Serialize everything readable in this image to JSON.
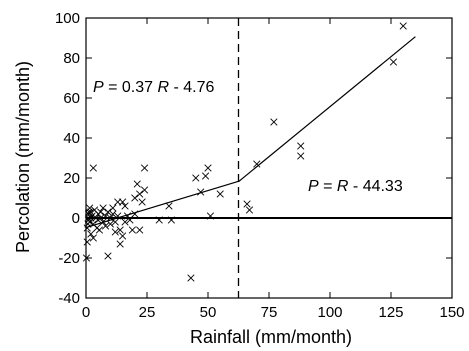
{
  "chart_data": {
    "type": "scatter",
    "xlabel": "Rainfall (mm/month)",
    "ylabel": "Percolation (mm/month)",
    "xlim": [
      0,
      150
    ],
    "ylim": [
      -40,
      100
    ],
    "xticks": [
      0,
      25,
      50,
      75,
      100,
      125,
      150
    ],
    "yticks": [
      -40,
      -20,
      0,
      20,
      40,
      60,
      80,
      100
    ],
    "xtick_labels": [
      "0",
      "25",
      "50",
      "75",
      "100",
      "125",
      "150"
    ],
    "ytick_labels": [
      "-40",
      "-20",
      "0",
      "20",
      "40",
      "60",
      "80",
      "100"
    ],
    "grid": false,
    "threshold_x": 62.5,
    "fit_segments": [
      {
        "x": [
          0,
          62.5
        ],
        "slope": 0.37,
        "intercept": -4.76,
        "equation": {
          "var1": "P",
          "mid": " = 0.37 ",
          "var2": "R",
          "rest": " - 4.76"
        }
      },
      {
        "x": [
          62.5,
          135
        ],
        "slope": 1,
        "intercept": -44.33,
        "equation": {
          "var1": "P",
          "mid": " = ",
          "var2": "R",
          "rest": " - 44.33"
        }
      }
    ],
    "points": [
      [
        0.2,
        -20
      ],
      [
        0.5,
        -12
      ],
      [
        0.5,
        -5
      ],
      [
        0.8,
        -3
      ],
      [
        1,
        -1
      ],
      [
        1,
        0
      ],
      [
        1,
        2
      ],
      [
        1.2,
        3
      ],
      [
        1.5,
        5
      ],
      [
        1.5,
        -2
      ],
      [
        2,
        -8
      ],
      [
        2,
        0
      ],
      [
        2,
        3
      ],
      [
        2.5,
        1
      ],
      [
        3,
        -3
      ],
      [
        3,
        25
      ],
      [
        3,
        -10
      ],
      [
        3.5,
        4
      ],
      [
        4,
        0
      ],
      [
        4.5,
        -5
      ],
      [
        5,
        2
      ],
      [
        5,
        -1
      ],
      [
        5.5,
        -6
      ],
      [
        6,
        3
      ],
      [
        6,
        0
      ],
      [
        7,
        -2
      ],
      [
        7,
        5
      ],
      [
        8,
        1
      ],
      [
        8,
        -4
      ],
      [
        9,
        -19
      ],
      [
        9,
        3
      ],
      [
        10,
        0
      ],
      [
        10,
        -3
      ],
      [
        11,
        2
      ],
      [
        11,
        5
      ],
      [
        12,
        -2
      ],
      [
        12,
        -7
      ],
      [
        13,
        1
      ],
      [
        13,
        8
      ],
      [
        14,
        -6
      ],
      [
        14,
        -13
      ],
      [
        15,
        -9
      ],
      [
        15,
        8
      ],
      [
        16,
        6
      ],
      [
        16,
        -2
      ],
      [
        17,
        1
      ],
      [
        18,
        -1
      ],
      [
        19,
        -6
      ],
      [
        20,
        2
      ],
      [
        20,
        10
      ],
      [
        21,
        17
      ],
      [
        22,
        12
      ],
      [
        22,
        -6
      ],
      [
        23,
        8
      ],
      [
        24,
        25
      ],
      [
        24,
        14
      ],
      [
        30,
        -1
      ],
      [
        34,
        6
      ],
      [
        35,
        -1
      ],
      [
        43,
        -30
      ],
      [
        45,
        20
      ],
      [
        47,
        13
      ],
      [
        49,
        21
      ],
      [
        50,
        25
      ],
      [
        51,
        1
      ],
      [
        55,
        12
      ],
      [
        66,
        7
      ],
      [
        67,
        4
      ],
      [
        70,
        27
      ],
      [
        77,
        48
      ],
      [
        88,
        36
      ],
      [
        88,
        31
      ],
      [
        126,
        78
      ],
      [
        130,
        96
      ]
    ]
  }
}
